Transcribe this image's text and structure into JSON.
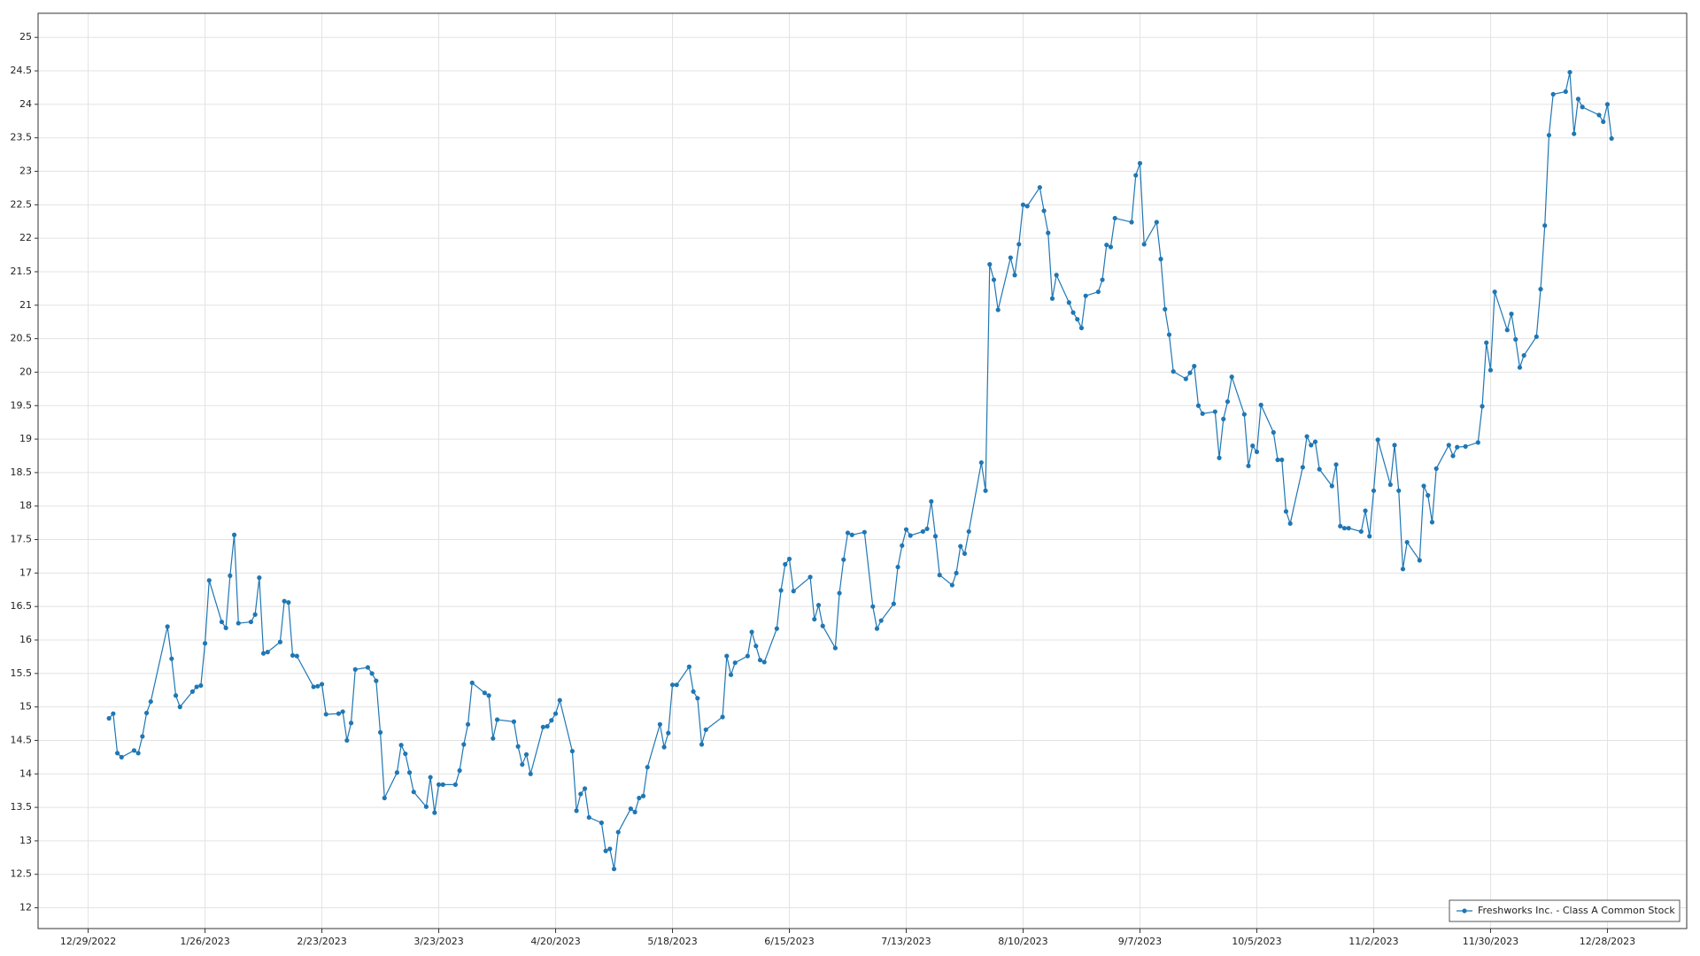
{
  "chart_data": {
    "type": "line",
    "x": [
      "1/3/2023",
      "1/4/2023",
      "1/5/2023",
      "1/6/2023",
      "1/9/2023",
      "1/10/2023",
      "1/11/2023",
      "1/12/2023",
      "1/13/2023",
      "1/17/2023",
      "1/18/2023",
      "1/19/2023",
      "1/20/2023",
      "1/23/2023",
      "1/24/2023",
      "1/25/2023",
      "1/26/2023",
      "1/27/2023",
      "1/30/2023",
      "1/31/2023",
      "2/1/2023",
      "2/2/2023",
      "2/3/2023",
      "2/6/2023",
      "2/7/2023",
      "2/8/2023",
      "2/9/2023",
      "2/10/2023",
      "2/13/2023",
      "2/14/2023",
      "2/15/2023",
      "2/16/2023",
      "2/17/2023",
      "2/21/2023",
      "2/22/2023",
      "2/23/2023",
      "2/24/2023",
      "2/27/2023",
      "2/28/2023",
      "3/1/2023",
      "3/2/2023",
      "3/3/2023",
      "3/6/2023",
      "3/7/2023",
      "3/8/2023",
      "3/9/2023",
      "3/10/2023",
      "3/13/2023",
      "3/14/2023",
      "3/15/2023",
      "3/16/2023",
      "3/17/2023",
      "3/20/2023",
      "3/21/2023",
      "3/22/2023",
      "3/23/2023",
      "3/24/2023",
      "3/27/2023",
      "3/28/2023",
      "3/29/2023",
      "3/30/2023",
      "3/31/2023",
      "4/3/2023",
      "4/4/2023",
      "4/5/2023",
      "4/6/2023",
      "4/10/2023",
      "4/11/2023",
      "4/12/2023",
      "4/13/2023",
      "4/14/2023",
      "4/17/2023",
      "4/18/2023",
      "4/19/2023",
      "4/20/2023",
      "4/21/2023",
      "4/24/2023",
      "4/25/2023",
      "4/26/2023",
      "4/27/2023",
      "4/28/2023",
      "5/1/2023",
      "5/2/2023",
      "5/3/2023",
      "5/4/2023",
      "5/5/2023",
      "5/8/2023",
      "5/9/2023",
      "5/10/2023",
      "5/11/2023",
      "5/12/2023",
      "5/15/2023",
      "5/16/2023",
      "5/17/2023",
      "5/18/2023",
      "5/19/2023",
      "5/22/2023",
      "5/23/2023",
      "5/24/2023",
      "5/25/2023",
      "5/26/2023",
      "5/30/2023",
      "5/31/2023",
      "6/1/2023",
      "6/2/2023",
      "6/5/2023",
      "6/6/2023",
      "6/7/2023",
      "6/8/2023",
      "6/9/2023",
      "6/12/2023",
      "6/13/2023",
      "6/14/2023",
      "6/15/2023",
      "6/16/2023",
      "6/20/2023",
      "6/21/2023",
      "6/22/2023",
      "6/23/2023",
      "6/26/2023",
      "6/27/2023",
      "6/28/2023",
      "6/29/2023",
      "6/30/2023",
      "7/3/2023",
      "7/5/2023",
      "7/6/2023",
      "7/7/2023",
      "7/10/2023",
      "7/11/2023",
      "7/12/2023",
      "7/13/2023",
      "7/14/2023",
      "7/17/2023",
      "7/18/2023",
      "7/19/2023",
      "7/20/2023",
      "7/21/2023",
      "7/24/2023",
      "7/25/2023",
      "7/26/2023",
      "7/27/2023",
      "7/28/2023",
      "7/31/2023",
      "8/1/2023",
      "8/2/2023",
      "8/3/2023",
      "8/4/2023",
      "8/7/2023",
      "8/8/2023",
      "8/9/2023",
      "8/10/2023",
      "8/11/2023",
      "8/14/2023",
      "8/15/2023",
      "8/16/2023",
      "8/17/2023",
      "8/18/2023",
      "8/21/2023",
      "8/22/2023",
      "8/23/2023",
      "8/24/2023",
      "8/25/2023",
      "8/28/2023",
      "8/29/2023",
      "8/30/2023",
      "8/31/2023",
      "9/1/2023",
      "9/5/2023",
      "9/6/2023",
      "9/7/2023",
      "9/8/2023",
      "9/11/2023",
      "9/12/2023",
      "9/13/2023",
      "9/14/2023",
      "9/15/2023",
      "9/18/2023",
      "9/19/2023",
      "9/20/2023",
      "9/21/2023",
      "9/22/2023",
      "9/25/2023",
      "9/26/2023",
      "9/27/2023",
      "9/28/2023",
      "9/29/2023",
      "10/2/2023",
      "10/3/2023",
      "10/4/2023",
      "10/5/2023",
      "10/6/2023",
      "10/9/2023",
      "10/10/2023",
      "10/11/2023",
      "10/12/2023",
      "10/13/2023",
      "10/16/2023",
      "10/17/2023",
      "10/18/2023",
      "10/19/2023",
      "10/20/2023",
      "10/23/2023",
      "10/24/2023",
      "10/25/2023",
      "10/26/2023",
      "10/27/2023",
      "10/30/2023",
      "10/31/2023",
      "11/1/2023",
      "11/2/2023",
      "11/3/2023",
      "11/6/2023",
      "11/7/2023",
      "11/8/2023",
      "11/9/2023",
      "11/10/2023",
      "11/13/2023",
      "11/14/2023",
      "11/15/2023",
      "11/16/2023",
      "11/17/2023",
      "11/20/2023",
      "11/21/2023",
      "11/22/2023",
      "11/24/2023",
      "11/27/2023",
      "11/28/2023",
      "11/29/2023",
      "11/30/2023",
      "12/1/2023",
      "12/4/2023",
      "12/5/2023",
      "12/6/2023",
      "12/7/2023",
      "12/8/2023",
      "12/11/2023",
      "12/12/2023",
      "12/13/2023",
      "12/14/2023",
      "12/15/2023",
      "12/18/2023",
      "12/19/2023",
      "12/20/2023",
      "12/21/2023",
      "12/22/2023",
      "12/26/2023",
      "12/27/2023",
      "12/28/2023",
      "12/29/2023"
    ],
    "series": [
      {
        "name": "Freshworks Inc. - Class A Common Stock",
        "color": "#1f77b4",
        "values": [
          14.83,
          14.9,
          14.31,
          14.25,
          14.35,
          14.31,
          14.56,
          14.91,
          15.08,
          16.2,
          15.72,
          15.17,
          15.0,
          15.23,
          15.3,
          15.32,
          15.95,
          16.89,
          16.27,
          16.18,
          16.96,
          17.57,
          16.25,
          16.27,
          16.38,
          16.93,
          15.8,
          15.82,
          15.97,
          16.58,
          16.56,
          15.77,
          15.76,
          15.3,
          15.31,
          15.34,
          14.89,
          14.9,
          14.93,
          14.5,
          14.76,
          15.56,
          15.59,
          15.5,
          15.39,
          14.62,
          13.64,
          14.02,
          14.43,
          14.3,
          14.02,
          13.73,
          13.51,
          13.95,
          13.42,
          13.84,
          13.84,
          13.84,
          14.05,
          14.44,
          14.74,
          15.36,
          15.21,
          15.17,
          14.53,
          14.81,
          14.78,
          14.41,
          14.14,
          14.29,
          14.0,
          14.7,
          14.71,
          14.8,
          14.9,
          15.1,
          14.34,
          13.45,
          13.7,
          13.78,
          13.35,
          13.27,
          12.85,
          12.88,
          12.58,
          13.13,
          13.48,
          13.43,
          13.64,
          13.67,
          14.1,
          14.74,
          14.4,
          14.61,
          15.33,
          15.33,
          15.6,
          15.23,
          15.13,
          14.44,
          14.66,
          14.85,
          15.76,
          15.48,
          15.66,
          15.76,
          16.12,
          15.91,
          15.7,
          15.67,
          16.17,
          16.74,
          17.13,
          17.21,
          16.73,
          16.94,
          16.31,
          16.52,
          16.21,
          15.88,
          16.7,
          17.2,
          17.6,
          17.57,
          17.61,
          16.5,
          16.17,
          16.29,
          16.54,
          17.09,
          17.41,
          17.65,
          17.56,
          17.62,
          17.66,
          18.07,
          17.55,
          16.97,
          16.82,
          17.0,
          17.4,
          17.29,
          17.62,
          18.65,
          18.23,
          21.61,
          21.38,
          20.93,
          21.71,
          21.45,
          21.91,
          22.5,
          22.48,
          22.76,
          22.41,
          22.08,
          21.1,
          21.45,
          21.04,
          20.89,
          20.79,
          20.66,
          21.14,
          21.2,
          21.38,
          21.9,
          21.87,
          22.3,
          22.24,
          22.94,
          23.12,
          21.91,
          22.24,
          21.69,
          20.94,
          20.56,
          20.01,
          19.9,
          19.99,
          20.09,
          19.5,
          19.38,
          19.41,
          18.72,
          19.3,
          19.56,
          19.93,
          19.37,
          18.6,
          18.9,
          18.81,
          19.51,
          19.1,
          18.69,
          18.69,
          17.92,
          17.74,
          18.58,
          19.04,
          18.91,
          18.96,
          18.55,
          18.3,
          18.62,
          17.7,
          17.67,
          17.67,
          17.62,
          17.93,
          17.55,
          18.23,
          18.99,
          18.32,
          18.91,
          18.23,
          17.06,
          17.46,
          17.19,
          18.3,
          18.16,
          17.76,
          18.56,
          18.91,
          18.75,
          18.88,
          18.89,
          18.95,
          19.49,
          20.44,
          20.03,
          21.2,
          20.63,
          20.87,
          20.49,
          20.07,
          20.25,
          20.53,
          21.24,
          22.19,
          23.54,
          24.15,
          24.19,
          24.48,
          23.56,
          24.08,
          23.96,
          23.84,
          23.74,
          24.0,
          23.49
        ]
      }
    ],
    "xlim": [
      "12/17/2022",
      "1/16/2024"
    ],
    "xticks": [
      "12/29/2022",
      "1/26/2023",
      "2/23/2023",
      "3/23/2023",
      "4/20/2023",
      "5/18/2023",
      "6/15/2023",
      "7/13/2023",
      "8/10/2023",
      "9/7/2023",
      "10/5/2023",
      "11/2/2023",
      "11/30/2023",
      "12/28/2023"
    ],
    "ylim": [
      11.69,
      25.36
    ],
    "yticks": [
      12,
      12.5,
      13,
      13.5,
      14,
      14.5,
      15,
      15.5,
      16,
      16.5,
      17,
      17.5,
      18,
      18.5,
      19,
      19.5,
      20,
      20.5,
      21,
      21.5,
      22,
      22.5,
      23,
      23.5,
      24,
      24.5,
      25
    ],
    "grid": true,
    "legend": "lower right"
  }
}
